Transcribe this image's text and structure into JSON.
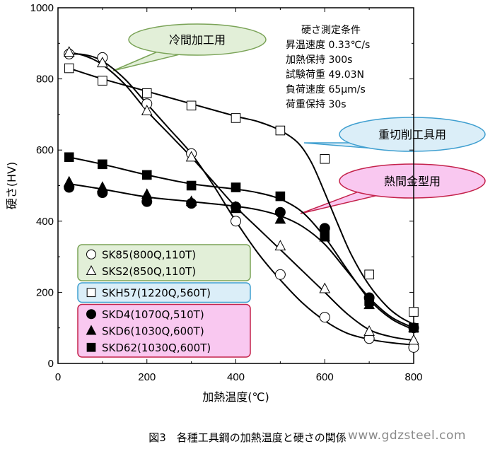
{
  "chart_data": {
    "type": "scatter",
    "title": "",
    "xlabel": "加熱温度(℃)",
    "ylabel": "硬さ(HV)",
    "xlim": [
      0,
      800
    ],
    "ylim": [
      0,
      1000
    ],
    "x_ticks": [
      0,
      200,
      400,
      600,
      800
    ],
    "y_ticks": [
      0,
      200,
      400,
      600,
      800,
      1000
    ],
    "grid": false,
    "series": [
      {
        "name": "SK85(800Q,110T)",
        "marker": "circle-open",
        "x": [
          25,
          100,
          200,
          300,
          400,
          500,
          600,
          700,
          800
        ],
        "y": [
          870,
          860,
          730,
          590,
          400,
          250,
          130,
          70,
          45
        ]
      },
      {
        "name": "SKS2(850Q,110T)",
        "marker": "triangle-open",
        "x": [
          25,
          100,
          200,
          300,
          400,
          500,
          600,
          700,
          800
        ],
        "y": [
          875,
          845,
          710,
          580,
          440,
          330,
          210,
          90,
          65
        ]
      },
      {
        "name": "SKH57(1220Q,560T)",
        "marker": "square-open",
        "x": [
          25,
          100,
          200,
          300,
          400,
          500,
          600,
          700,
          800
        ],
        "y": [
          830,
          795,
          760,
          725,
          690,
          655,
          575,
          250,
          145
        ]
      },
      {
        "name": "SKD4(1070Q,510T)",
        "marker": "circle-filled",
        "x": [
          25,
          100,
          200,
          300,
          400,
          500,
          600,
          700,
          800
        ],
        "y": [
          495,
          480,
          455,
          450,
          440,
          425,
          380,
          185,
          100
        ]
      },
      {
        "name": "SKD6(1030Q,600T)",
        "marker": "triangle-filled",
        "x": [
          25,
          100,
          200,
          300,
          400,
          500,
          600,
          700,
          800
        ],
        "y": [
          510,
          495,
          475,
          455,
          435,
          405,
          355,
          165,
          100
        ]
      },
      {
        "name": "SKD62(1030Q,600T)",
        "marker": "square-filled",
        "x": [
          25,
          100,
          200,
          300,
          400,
          500,
          600,
          700,
          800
        ],
        "y": [
          580,
          560,
          530,
          500,
          495,
          470,
          360,
          175,
          100
        ]
      }
    ],
    "curves": [
      {
        "series": "SK85(800Q,110T)",
        "x": [
          25,
          60,
          100,
          150,
          200,
          250,
          300,
          350,
          400,
          450,
          500,
          550,
          600,
          650,
          700,
          750,
          800
        ],
        "y": [
          870,
          868,
          850,
          800,
          730,
          660,
          590,
          500,
          400,
          310,
          235,
          170,
          120,
          85,
          68,
          58,
          52
        ]
      },
      {
        "series": "SKS2(850Q,110T)",
        "x": [
          25,
          60,
          100,
          150,
          200,
          250,
          300,
          350,
          400,
          450,
          500,
          550,
          600,
          650,
          700,
          750,
          800
        ],
        "y": [
          875,
          865,
          840,
          785,
          710,
          645,
          580,
          510,
          440,
          380,
          320,
          260,
          200,
          140,
          95,
          75,
          65
        ]
      },
      {
        "series": "SKH57(1220Q,560T)",
        "x": [
          25,
          100,
          200,
          300,
          400,
          450,
          500,
          540,
          570,
          600,
          630,
          660,
          700,
          740,
          770,
          800
        ],
        "y": [
          830,
          800,
          765,
          730,
          695,
          680,
          655,
          620,
          565,
          480,
          390,
          305,
          220,
          160,
          130,
          110
        ]
      },
      {
        "series": "SKD4/SKD6",
        "x": [
          25,
          100,
          200,
          300,
          400,
          450,
          500,
          550,
          600,
          650,
          700,
          750,
          800
        ],
        "y": [
          505,
          490,
          468,
          455,
          442,
          432,
          415,
          385,
          335,
          260,
          185,
          130,
          100
        ]
      },
      {
        "series": "SKD62(1030Q,600T)",
        "x": [
          25,
          100,
          200,
          300,
          400,
          450,
          500,
          550,
          600,
          650,
          700,
          750,
          800
        ],
        "y": [
          580,
          560,
          530,
          505,
          490,
          480,
          462,
          425,
          355,
          265,
          180,
          125,
          95
        ]
      }
    ],
    "legend": {
      "placement": "bottom-left",
      "groups": [
        {
          "color": "#e2efd8",
          "border": "#7aa357",
          "entries": [
            "SK85(800Q,110T)",
            "SKS2(850Q,110T)"
          ]
        },
        {
          "color": "#dbeef8",
          "border": "#3f9fd0",
          "entries": [
            "SKH57(1220Q,560T)"
          ]
        },
        {
          "color": "#f9c8f0",
          "border": "#c4224b",
          "entries": [
            "SKD4(1070Q,510T)",
            "SKD6(1030Q,600T)",
            "SKD62(1030Q,600T)"
          ]
        }
      ]
    },
    "annotations": {
      "conditions": [
        "硬さ測定条件",
        "昇温速度 0.33℃/s",
        "加熱保持 300s",
        "試験荷重 49.03N",
        "負荷速度 65μm/s",
        "荷重保持 30s"
      ],
      "callouts": [
        {
          "text": "冷間加工用",
          "fill": "#e2efd8",
          "border": "#7aa357"
        },
        {
          "text": "重切削工具用",
          "fill": "#dbeef8",
          "border": "#3f9fd0"
        },
        {
          "text": "熱間金型用",
          "fill": "#f9c8f0",
          "border": "#c4224b"
        }
      ]
    }
  },
  "caption": "図3　各種工具鋼の加熱温度と硬さの関係",
  "watermark": "www.gdzsteel.com"
}
